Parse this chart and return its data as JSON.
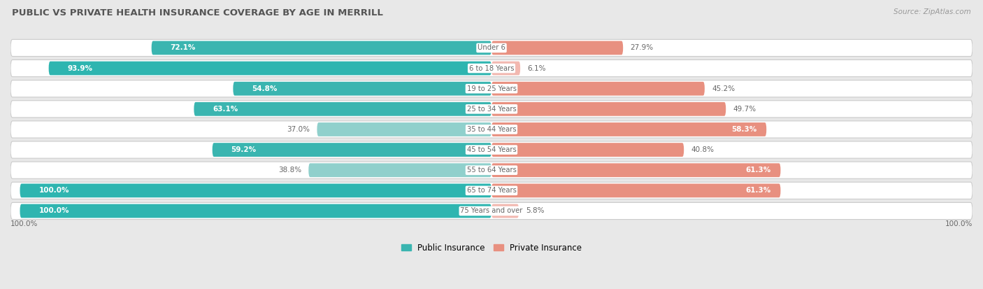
{
  "title": "PUBLIC VS PRIVATE HEALTH INSURANCE COVERAGE BY AGE IN MERRILL",
  "source": "Source: ZipAtlas.com",
  "categories": [
    "Under 6",
    "6 to 18 Years",
    "19 to 25 Years",
    "25 to 34 Years",
    "35 to 44 Years",
    "45 to 54 Years",
    "55 to 64 Years",
    "65 to 74 Years",
    "75 Years and over"
  ],
  "public_values": [
    72.1,
    93.9,
    54.8,
    63.1,
    37.0,
    59.2,
    38.8,
    100.0,
    100.0
  ],
  "private_values": [
    27.9,
    6.1,
    45.2,
    49.7,
    58.3,
    40.8,
    61.3,
    61.3,
    5.8
  ],
  "public_color_strong": "#2eb5b0",
  "public_color_medium": "#3ab5b0",
  "public_color_light": "#90d0cc",
  "private_color_strong": "#e8796a",
  "private_color_medium": "#e89080",
  "private_color_light": "#f2b8b0",
  "row_bg_color_dark": "#e8e8e8",
  "row_bg_color_light": "#f5f5f5",
  "row_inner_color": "#ffffff",
  "text_color_dark": "#666666",
  "text_color_white": "#ffffff",
  "title_color": "#555555",
  "legend_public": "Public Insurance",
  "legend_private": "Private Insurance",
  "figsize": [
    14.06,
    4.13
  ],
  "dpi": 100
}
